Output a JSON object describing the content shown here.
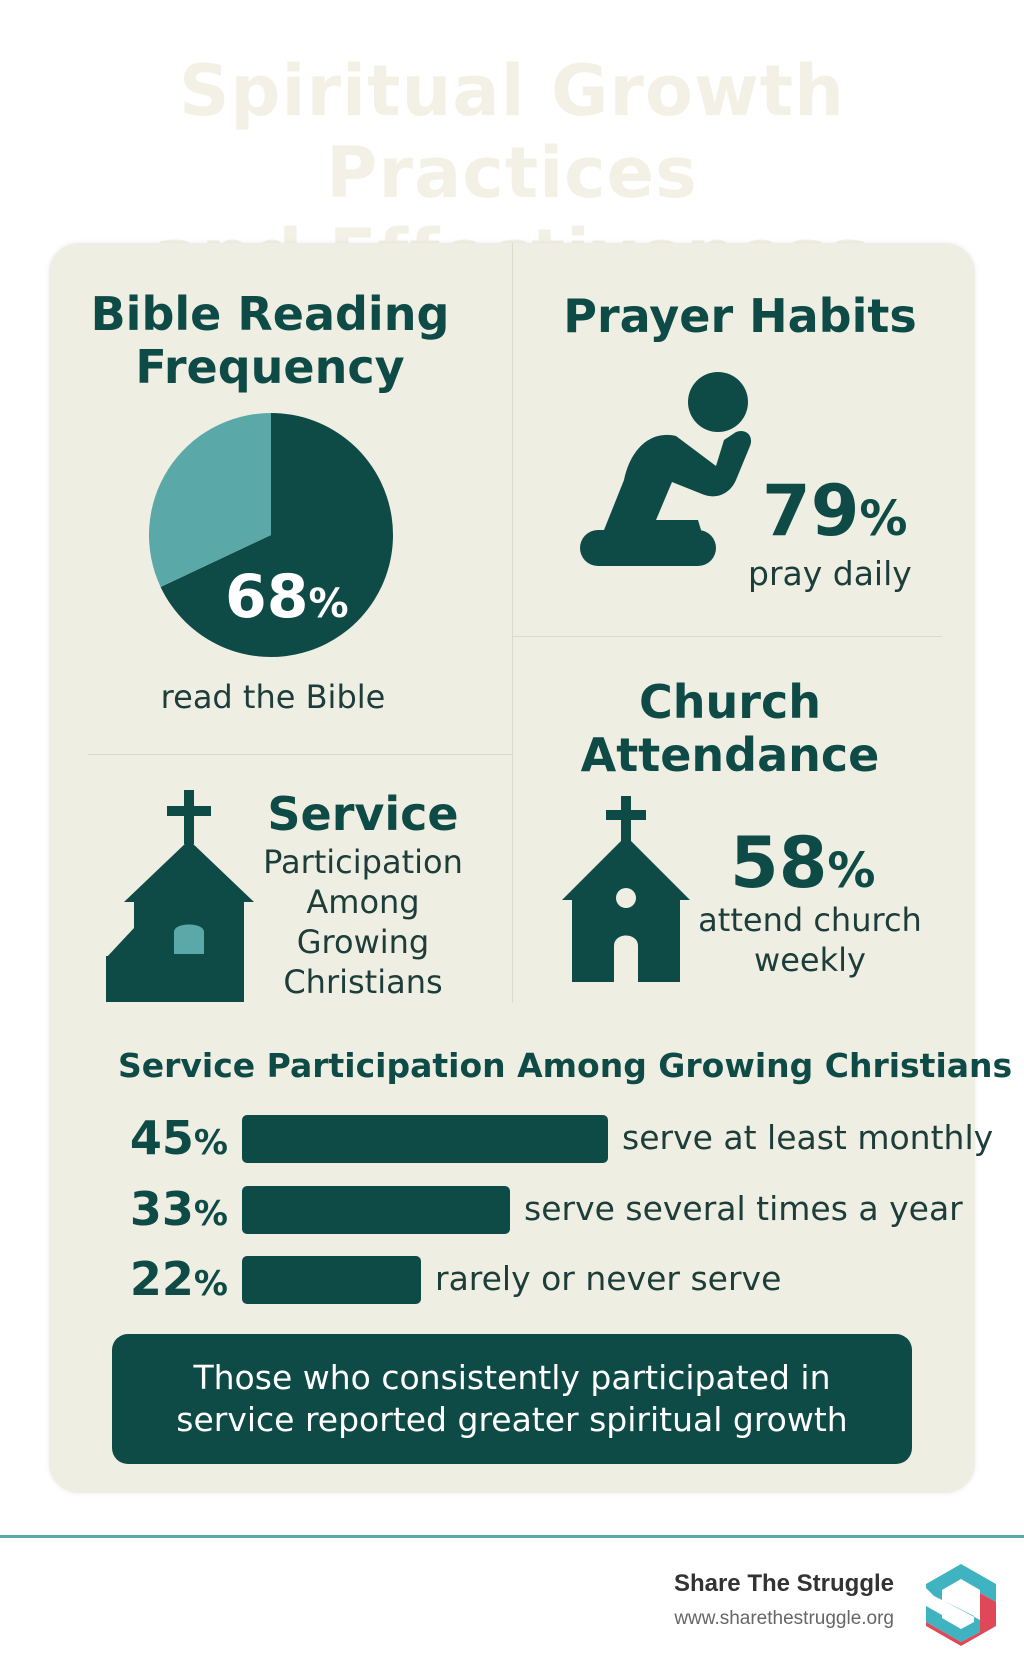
{
  "title": {
    "line1": "Spiritual Growth Practices",
    "line2": "and Effectiveness"
  },
  "bible": {
    "title_line1": "Bible Reading",
    "title_line2": "Frequency",
    "percent": "68",
    "percent_sign": "%",
    "caption": "read the Bible"
  },
  "prayer": {
    "title": "Prayer Habits",
    "percent": "79",
    "percent_sign": "%",
    "caption": "pray daily",
    "icon": "kneeling-person-icon"
  },
  "church": {
    "title_line1": "Church",
    "title_line2": "Attendance",
    "percent": "58",
    "percent_sign": "%",
    "caption_line1": "attend church",
    "caption_line2": "weekly",
    "icon": "church-icon"
  },
  "service": {
    "title": "Service",
    "sub_line1": "Participation",
    "sub_line2": "Among",
    "sub_line3": "Growing",
    "sub_line4": "Christians",
    "icon": "church-icon"
  },
  "bars_section": {
    "title": "Service Participation Among Growing Christians"
  },
  "callout": {
    "text": "Those who consistently participated in service reported greater spiritual growth"
  },
  "footer": {
    "brand": "Share The Struggle",
    "url": "www.sharethestruggle.org",
    "logo_icon": "s-hexagon-logo"
  },
  "colors": {
    "dark_teal": "#0e4a46",
    "light_teal": "#5aa9a8",
    "card_bg": "#efeee3",
    "logo_red": "#e0485a",
    "logo_teal": "#3fb4c0"
  },
  "chart_data": [
    {
      "type": "pie",
      "categories": [
        "read the Bible",
        ""
      ],
      "values": [
        68,
        32
      ],
      "colors": [
        "#0e4a46",
        "#5aa9a8"
      ]
    },
    {
      "type": "bar",
      "title": "Service Participation Among Growing Christians",
      "categories": [
        "serve at least monthly",
        "serve several times a year",
        "rarely or never serve"
      ],
      "values": [
        45,
        33,
        22
      ],
      "labels": [
        "45",
        "33",
        "22"
      ],
      "unit": "%"
    }
  ]
}
